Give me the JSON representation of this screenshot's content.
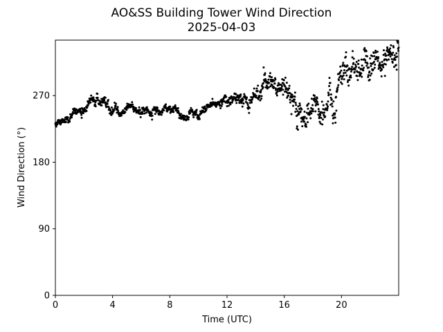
{
  "chart_data": {
    "type": "scatter",
    "title": "AO&SS Building Tower Wind Direction",
    "subtitle": "2025-04-03",
    "xlabel": "Time (UTC)",
    "ylabel": "Wind Direction (°)",
    "xlim": [
      0,
      24
    ],
    "ylim": [
      0,
      345
    ],
    "x_ticks": [
      0,
      4,
      8,
      12,
      16,
      20
    ],
    "x_tick_labels": [
      "0",
      "4",
      "8",
      "12",
      "16",
      "20"
    ],
    "y_ticks": [
      0,
      90,
      180,
      270
    ],
    "y_tick_labels": [
      "0",
      "90",
      "180",
      "270"
    ],
    "grid": false,
    "legend": "none",
    "marker_color": "#000000",
    "x_interval_hours": 0.02,
    "trend": {
      "x": [
        0,
        0.5,
        1.0,
        1.5,
        2.0,
        2.5,
        3.0,
        3.5,
        4.0,
        4.5,
        5.0,
        5.5,
        6.0,
        6.5,
        7.0,
        7.5,
        8.0,
        8.5,
        9.0,
        9.5,
        10.0,
        10.5,
        11.0,
        11.5,
        12.0,
        12.5,
        13.0,
        13.5,
        14.0,
        14.5,
        15.0,
        15.5,
        16.0,
        16.5,
        17.0,
        17.5,
        18.0,
        18.5,
        19.0,
        19.5,
        20.0,
        20.5,
        21.0,
        21.5,
        22.0,
        22.5,
        23.0,
        23.5,
        24.0
      ],
      "y": [
        228,
        236,
        241,
        248,
        245,
        264,
        261,
        258,
        250,
        246,
        258,
        252,
        248,
        246,
        245,
        247,
        246,
        249,
        243,
        246,
        248,
        252,
        258,
        260,
        263,
        264,
        266,
        260,
        272,
        285,
        292,
        282,
        275,
        262,
        252,
        245,
        256,
        248,
        255,
        270,
        310,
        315,
        305,
        312,
        325,
        315,
        330,
        322,
        320
      ],
      "scatter": [
        3,
        3,
        4,
        4,
        4,
        5,
        5,
        5,
        4,
        4,
        4,
        4,
        4,
        4,
        4,
        4,
        4,
        4,
        4,
        4,
        4,
        4,
        4,
        4,
        5,
        5,
        5,
        6,
        7,
        8,
        8,
        8,
        8,
        9,
        10,
        10,
        10,
        10,
        10,
        12,
        13,
        12,
        12,
        12,
        12,
        12,
        12,
        12,
        12
      ]
    }
  }
}
